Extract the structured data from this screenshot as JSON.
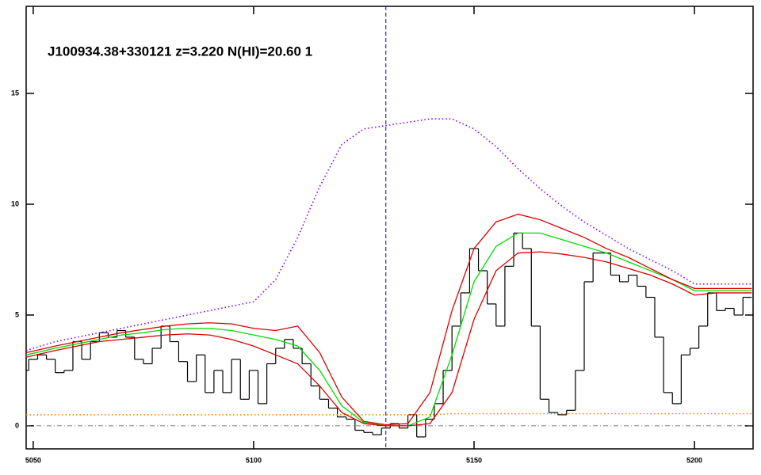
{
  "chart_data": {
    "type": "line",
    "title": "J100934.38+330121 z=3.220 N(HI)=20.60 1",
    "xlim": [
      5048.4,
      5213.3
    ],
    "ylim": [
      -1.04,
      18.93
    ],
    "xticks": [
      5050,
      5100,
      5150,
      5200
    ],
    "yticks": [
      0,
      5,
      10,
      15
    ],
    "vline": 5130,
    "hline": 0,
    "spectrum": {
      "color": "#000000",
      "x": [
        5048,
        5050,
        5052,
        5054,
        5056,
        5058,
        5060,
        5062,
        5064,
        5066,
        5068,
        5070,
        5072,
        5074,
        5076,
        5078,
        5080,
        5082,
        5084,
        5086,
        5088,
        5090,
        5092,
        5094,
        5096,
        5098,
        5100,
        5102,
        5104,
        5106,
        5108,
        5110,
        5112,
        5114,
        5116,
        5118,
        5120,
        5122,
        5124,
        5126,
        5128,
        5130,
        5132,
        5134,
        5136,
        5138,
        5140,
        5142,
        5144,
        5146,
        5148,
        5150,
        5152,
        5154,
        5156,
        5158,
        5160,
        5162,
        5164,
        5166,
        5168,
        5170,
        5172,
        5174,
        5176,
        5178,
        5180,
        5182,
        5184,
        5186,
        5188,
        5190,
        5192,
        5194,
        5196,
        5198,
        5200,
        5202,
        5204,
        5206,
        5208,
        5210,
        5212
      ],
      "values": [
        2.5,
        3.0,
        3.2,
        3.0,
        2.4,
        2.5,
        3.8,
        3.0,
        3.8,
        4.2,
        4.0,
        4.3,
        4.0,
        3.0,
        2.8,
        3.5,
        4.5,
        3.8,
        2.9,
        2.0,
        3.2,
        1.5,
        2.5,
        1.5,
        3.0,
        1.2,
        2.5,
        1.0,
        2.8,
        3.5,
        3.9,
        3.5,
        2.8,
        1.8,
        1.2,
        0.8,
        0.4,
        0.3,
        -0.2,
        -0.3,
        -0.4,
        -0.1,
        0.1,
        -0.1,
        0.5,
        -0.5,
        0.3,
        1.0,
        2.5,
        4.5,
        6.0,
        8.0,
        7.0,
        5.5,
        4.5,
        7.2,
        8.7,
        8.0,
        4.5,
        1.2,
        0.6,
        0.5,
        0.7,
        2.5,
        6.5,
        7.8,
        7.8,
        6.8,
        6.5,
        6.8,
        6.3,
        5.8,
        4.0,
        1.5,
        1.0,
        3.2,
        3.5,
        4.5,
        6.0,
        5.2,
        5.3,
        5.0,
        5.8
      ]
    },
    "x": [
      5048,
      5055,
      5060,
      5065,
      5070,
      5075,
      5080,
      5085,
      5090,
      5095,
      5100,
      5105,
      5110,
      5115,
      5120,
      5125,
      5130,
      5135,
      5140,
      5145,
      5150,
      5155,
      5160,
      5165,
      5170,
      5175,
      5180,
      5185,
      5190,
      5195,
      5200,
      5205,
      5210,
      5213
    ],
    "series": [
      {
        "color": "#8000ff",
        "dash": "dotted",
        "values": [
          3.4,
          3.8,
          4.0,
          4.2,
          4.4,
          4.6,
          4.8,
          5.0,
          5.2,
          5.4,
          5.6,
          6.6,
          8.5,
          10.8,
          12.7,
          13.4,
          13.55,
          13.7,
          13.85,
          13.85,
          13.4,
          12.6,
          11.6,
          10.7,
          9.9,
          9.2,
          8.6,
          8.0,
          7.5,
          7.0,
          6.4,
          6.4,
          6.4,
          6.4
        ]
      },
      {
        "color": "#ff8000",
        "dash": "dotted",
        "values": [
          0.5,
          0.5,
          0.5,
          0.5,
          0.5,
          0.5,
          0.5,
          0.5,
          0.5,
          0.5,
          0.5,
          0.5,
          0.5,
          0.5,
          0.5,
          0.5,
          0.5,
          0.5,
          0.5,
          0.55,
          0.55,
          0.55,
          0.55,
          0.55,
          0.55,
          0.55,
          0.55,
          0.55,
          0.55,
          0.55,
          0.55,
          0.55,
          0.55,
          0.55
        ]
      },
      {
        "color": "#00dd00",
        "dash": "solid",
        "values": [
          3.2,
          3.5,
          3.7,
          3.9,
          4.1,
          4.2,
          4.35,
          4.4,
          4.4,
          4.3,
          4.1,
          3.9,
          3.6,
          2.5,
          0.9,
          0.15,
          0.0,
          0.0,
          0.4,
          3.2,
          6.5,
          8.1,
          8.7,
          8.7,
          8.4,
          8.1,
          7.8,
          7.4,
          7.0,
          6.6,
          6.1,
          6.1,
          6.1,
          6.1
        ]
      },
      {
        "color": "#dd0000",
        "dash": "solid",
        "values": [
          3.3,
          3.6,
          3.8,
          4.0,
          4.2,
          4.35,
          4.5,
          4.6,
          4.65,
          4.6,
          4.4,
          4.3,
          4.5,
          3.3,
          1.3,
          0.2,
          0.05,
          0.1,
          1.5,
          5.2,
          8.0,
          9.2,
          9.55,
          9.3,
          8.9,
          8.5,
          8.0,
          7.6,
          7.1,
          6.6,
          6.2,
          6.2,
          6.2,
          6.2
        ]
      },
      {
        "color": "#dd0000",
        "dash": "solid",
        "values": [
          3.1,
          3.4,
          3.6,
          3.8,
          3.9,
          4.0,
          4.1,
          4.15,
          4.1,
          3.9,
          3.6,
          3.2,
          2.8,
          1.8,
          0.6,
          0.1,
          0.0,
          0.0,
          0.1,
          1.5,
          4.8,
          7.0,
          7.8,
          7.85,
          7.75,
          7.6,
          7.4,
          7.1,
          6.8,
          6.4,
          5.9,
          6.0,
          6.0,
          6.0
        ]
      }
    ]
  }
}
